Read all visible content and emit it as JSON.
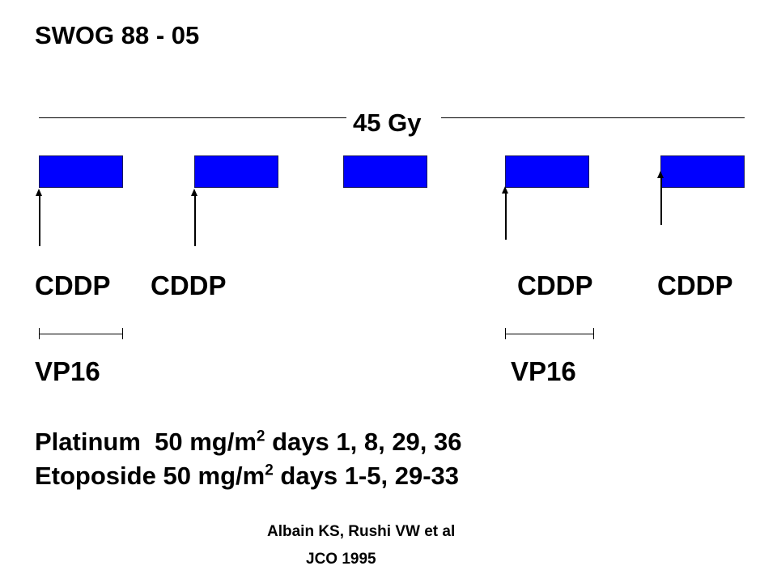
{
  "title": "SWOG 88 - 05",
  "radiation": {
    "label": "45 Gy"
  },
  "blocks": [
    "block-1",
    "block-2",
    "block-3",
    "block-4",
    "block-5"
  ],
  "cddp_labels": [
    "CDDP",
    "CDDP",
    "CDDP",
    "CDDP"
  ],
  "vp16_labels": [
    "VP16",
    "VP16"
  ],
  "dosing": {
    "platinum": {
      "name": "Platinum",
      "dose": "50 mg/m",
      "exp": "2",
      "schedule": " days 1, 8, 29, 36"
    },
    "etoposide": {
      "name": "Etoposide",
      "dose": " 50 mg/m",
      "exp": "2",
      "schedule": " days 1-5, 29-33"
    }
  },
  "reference": {
    "authors": "Albain KS, Rushi VW et al",
    "journal": "JCO 1995"
  },
  "colors": {
    "block": "#0000ff",
    "text": "#000000"
  }
}
